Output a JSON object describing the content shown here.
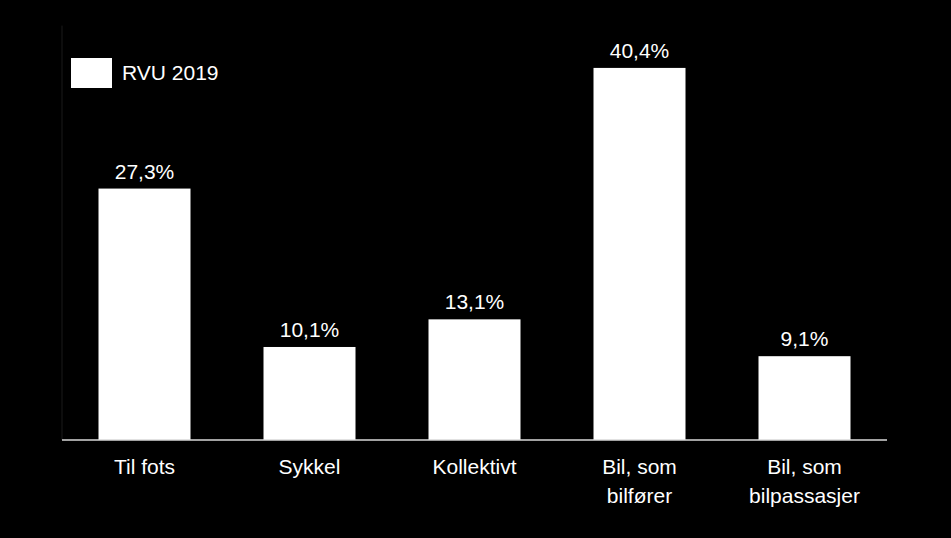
{
  "chart_data": {
    "type": "bar",
    "categories": [
      "Til fots",
      "Sykkel",
      "Kollektivt",
      "Bil, som\nbilfører",
      "Bil, som\nbilpassasjer"
    ],
    "series": [
      {
        "name": "RVU 2019",
        "color": "#ffffff",
        "values": [
          27.3,
          10.1,
          13.1,
          40.4,
          9.1
        ],
        "value_labels": [
          "27,3%",
          "10,1%",
          "13,1%",
          "40,4%",
          "9,1%"
        ]
      }
    ],
    "ylim": [
      0,
      45
    ],
    "data_labels": true,
    "tick_labels": "x",
    "legend": "top-left"
  }
}
